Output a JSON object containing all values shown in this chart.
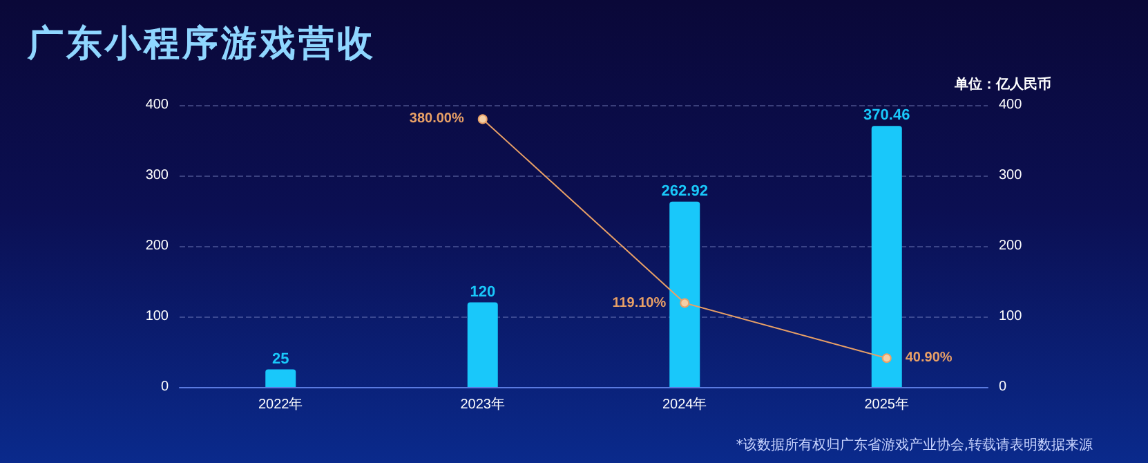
{
  "chart_data": {
    "type": "bar",
    "title": "广东小程序游戏营收",
    "annotations": [
      "单位：亿人民币",
      "*该数据所有权归广东省游戏产业协会,转载请表明数据来源"
    ],
    "categories": [
      "2022年",
      "2023年",
      "2024年",
      "2025年"
    ],
    "series": [
      {
        "color": "#19c8fa",
        "values": [
          25,
          120,
          262.92,
          370.46
        ],
        "value_labels": [
          "25",
          "120",
          "262.92",
          "370.46"
        ]
      },
      {
        "type": "line",
        "axis": "y2",
        "color": "#e9a066",
        "values": [
          null,
          380.0,
          119.1,
          40.9
        ],
        "value_labels": [
          null,
          "380.00%",
          "119.10%",
          "40.90%"
        ]
      }
    ],
    "ylim": [
      0,
      400
    ],
    "yticks": [
      0,
      100,
      200,
      300,
      400
    ],
    "y2lim": [
      0,
      400
    ],
    "y2ticks": [
      0,
      100,
      200,
      300,
      400
    ],
    "grid": "y",
    "marker": "circle",
    "line_style": "solid"
  }
}
